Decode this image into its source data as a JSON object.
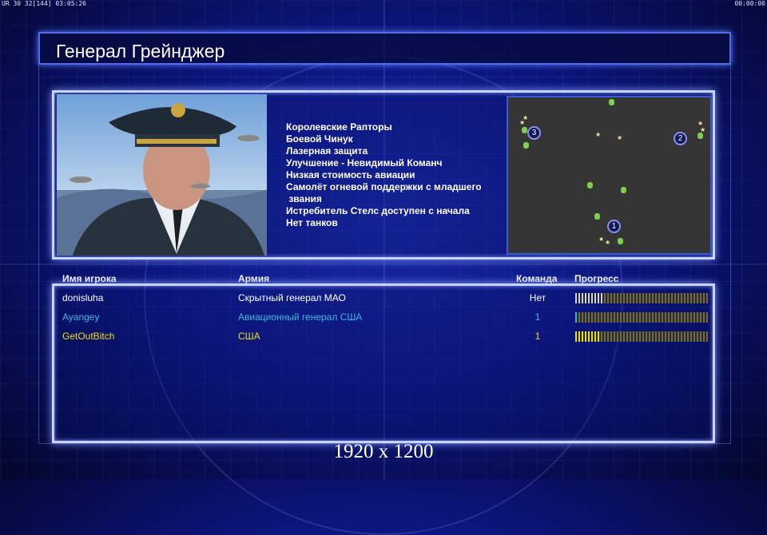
{
  "status_bar": {
    "left": "UR 30 32[144] 03:05:26",
    "right": "00:00:00"
  },
  "title": "Генерал Грейнджер",
  "features": [
    "Королевские Рапторы",
    "Боевой Чинук",
    "Лазерная защита",
    "Улучшение - Невидимый Команч",
    "Низкая стоимость авиации",
    "Самолёт огневой поддержки с младшего",
    " звания",
    "Истребитель Стелс доступен с начала",
    "Нет танков"
  ],
  "map": {
    "start_positions": [
      "1",
      "2",
      "3"
    ]
  },
  "table": {
    "headers": {
      "name": "Имя игрока",
      "army": "Армия",
      "team": "Команда",
      "progress": "Прогресс"
    },
    "rows": [
      {
        "name": "donisluha",
        "army": "Скрытный генерал МАО",
        "team": "Нет",
        "progress": 0.21,
        "color": "#ffffff"
      },
      {
        "name": "Ayangey",
        "army": "Авиационный генерал США",
        "team": "1",
        "progress": 0.02,
        "color": "#3fb8e0"
      },
      {
        "name": "GetOutBitch",
        "army": "США",
        "team": "1",
        "progress": 0.18,
        "color": "#e8e020"
      }
    ]
  },
  "resolution": "1920 x 1200"
}
